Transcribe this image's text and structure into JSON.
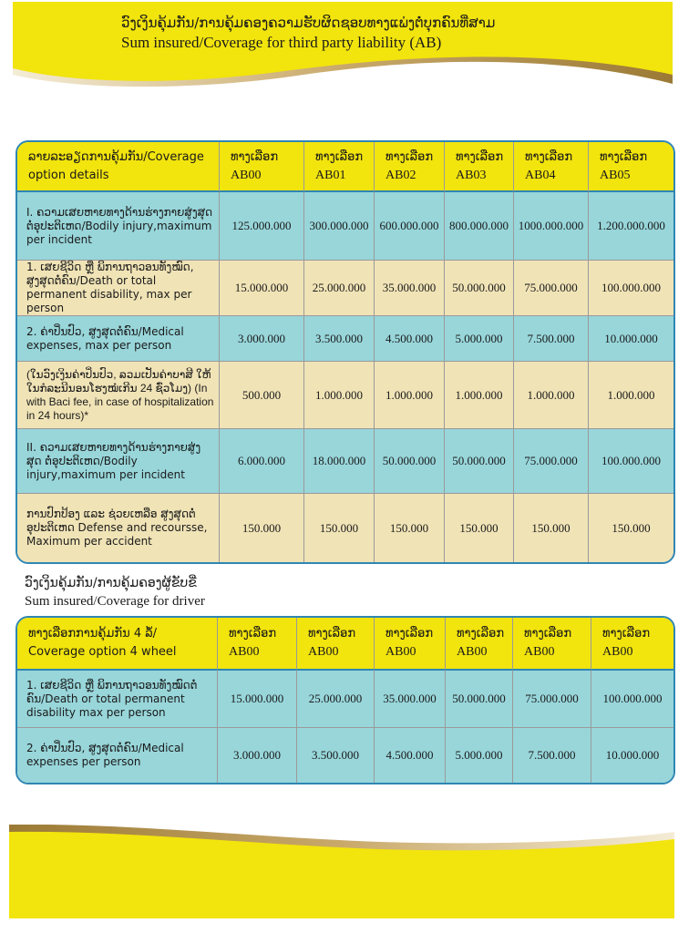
{
  "header": {
    "title_lao": "ວົງເງິນຄຸ້ມກັນ/ການຄຸ້ມຄອງຄວາມຮັບຜິດຊອບທາງແພ່ງຕໍ່ບຸກຄົນທີ່ສາມ",
    "title_en": "Sum insured/Coverage for third party liability (AB)"
  },
  "colors": {
    "yellow": "#f2e40d",
    "teal": "#98d6da",
    "beige": "#f0e3b6",
    "border": "#2f86b4"
  },
  "table1": {
    "header": {
      "label": "ລາຍລະອຽດການຄຸ້ມກັນ/Coverage option details",
      "options": [
        {
          "lao": "ທາງເລືອກ",
          "code": "AB00"
        },
        {
          "lao": "ທາງເລືອກ",
          "code": "AB01"
        },
        {
          "lao": "ທາງເລືອກ",
          "code": "AB02"
        },
        {
          "lao": "ທາງເລືອກ",
          "code": "AB03"
        },
        {
          "lao": "ທາງເລືອກ",
          "code": "AB04"
        },
        {
          "lao": "ທາງເລືອກ",
          "code": "AB05"
        }
      ]
    },
    "rows": [
      {
        "label": "I. ຄວາມເສຍຫາຍທາງດ້ານຮ່າງກາຍສູ່ງສຸດ ຕໍ່ອຸປະຕິເຫດ/Bodily injury,maximum per incident",
        "values": [
          "125.000.000",
          "300.000.000",
          "600.000.000",
          "800.000.000",
          "1000.000.000",
          "1.200.000.000"
        ]
      },
      {
        "label": "1. ເສຍຊີວິດ ຫຼື ພິການຖາວອນທັງໝົດ, ສູງສຸດຕໍ່ຄົນ/Death or total permanent disability, max per person",
        "values": [
          "15.000.000",
          "25.000.000",
          "35.000.000",
          "50.000.000",
          "75.000.000",
          "100.000.000"
        ]
      },
      {
        "label": "2. ຄ່າປິ່ນປົວ, ສູງສຸດຕໍ່ຄົນ/Medical expenses, max per person",
        "values": [
          "3.000.000",
          "3.500.000",
          "4.500.000",
          "5.000.000",
          "7.500.000",
          "10.000.000"
        ]
      },
      {
        "label": "(ໃນວົງເງິນຄ່າປິ່ນປົວ, ລວມເປັນຄ່າບາສີ ໃຫ້ໃນກໍລະນີນອນໂຮງໝໍເກີນ 24 ຊົ່ວໂມງ) (In with Baci fee, in case of hospitalization in 24 hours)*",
        "values": [
          "500.000",
          "1.000.000",
          "1.000.000",
          "1.000.000",
          "1.000.000",
          "1.000.000"
        ]
      },
      {
        "label": "II. ຄວາມເສຍຫາຍທາງດ້ານຮ່າງກາຍສູ່ງສຸດ ຕໍ່ອຸປະຕິເຫດ/Bodily injury,maximum per incident",
        "values": [
          "6.000.000",
          "18.000.000",
          "50.000.000",
          "50.000.000",
          "75.000.000",
          "100.000.000"
        ]
      },
      {
        "label": "ການປົກປ້ອງ ແລະ ຊ່ວຍເຫລືອ ສູງສຸດຕໍ່ອຸປະຕິເຫດ Defense and recoursse, Maximum per accident",
        "values": [
          "150.000",
          "150.000",
          "150.000",
          "150.000",
          "150.000",
          "150.000"
        ]
      }
    ]
  },
  "section2": {
    "title_lao": "ວົງເງິນຄຸ້ມກັນ/ການຄຸ້ມຄອງຜູ້ຂັບຂີ່",
    "title_en": "Sum insured/Coverage for driver"
  },
  "table2": {
    "header": {
      "label": "ທາງເລືອກການຄຸ້ມກັນ 4 ລໍ້/ Coverage option 4 wheel",
      "options": [
        {
          "lao": "ທາງເລືອກ",
          "code": "AB00"
        },
        {
          "lao": "ທາງເລືອກ",
          "code": "AB00"
        },
        {
          "lao": "ທາງເລືອກ",
          "code": "AB00"
        },
        {
          "lao": "ທາງເລືອກ",
          "code": "AB00"
        },
        {
          "lao": "ທາງເລືອກ",
          "code": "AB00"
        },
        {
          "lao": "ທາງເລືອກ",
          "code": "AB00"
        }
      ]
    },
    "rows": [
      {
        "label": "1. ເສຍຊີວິດ ຫຼື ພິການຖາວອນທັງໝົດຕໍ່ຄົນ/Death or total permanent disability max per person",
        "values": [
          "15.000.000",
          "25.000.000",
          "35.000.000",
          "50.000.000",
          "75.000.000",
          "100.000.000"
        ]
      },
      {
        "label": "2. ຄ່າປິ່ນປົວ, ສູງສຸດຕໍ່ຄົນ/Medical expenses per person",
        "values": [
          "3.000.000",
          "3.500.000",
          "4.500.000",
          "5.000.000",
          "7.500.000",
          "10.000.000"
        ]
      }
    ]
  }
}
